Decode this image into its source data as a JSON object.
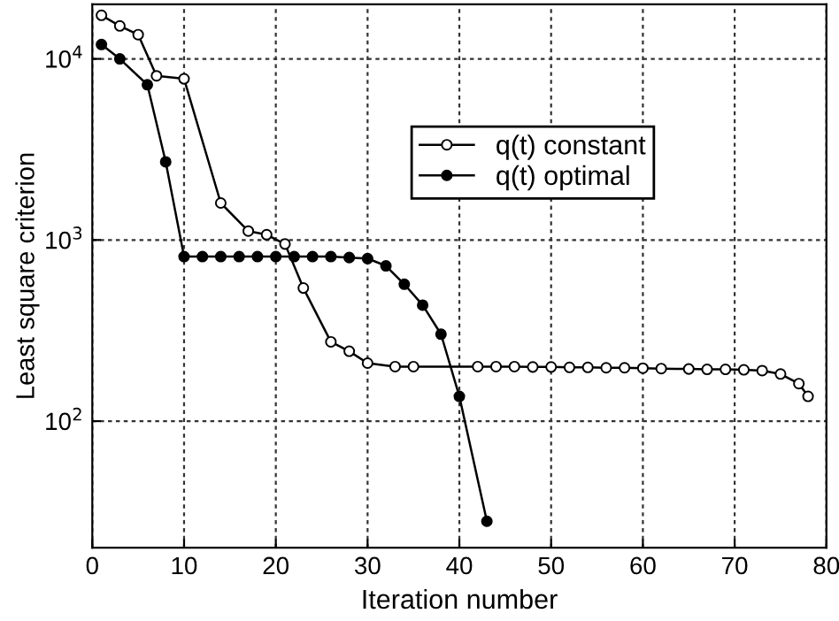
{
  "chart_data": {
    "type": "line",
    "xlabel": "Iteration number",
    "ylabel": "Least square criterion",
    "log": "y",
    "xlim": [
      0,
      80
    ],
    "xticks": [
      0,
      10,
      20,
      30,
      40,
      50,
      60,
      70,
      80
    ],
    "ylim": [
      20,
      20000
    ],
    "yticks": [
      {
        "value": 100,
        "label": "10$^{2}$"
      },
      {
        "value": 1000,
        "label": "10$^{3}$"
      },
      {
        "value": 10000,
        "label": "10$^{4}$"
      }
    ],
    "grid": true,
    "legend": "upper center",
    "marker": "circle",
    "line_style": "solid",
    "series": [
      {
        "name": "q(t) constant",
        "color": "#000000",
        "x": [
          1,
          3,
          5,
          7,
          10,
          14,
          17,
          19,
          21,
          23,
          26,
          28,
          30,
          33,
          35,
          42,
          44,
          46,
          48,
          50,
          52,
          54,
          56,
          58,
          60,
          62,
          65,
          67,
          69,
          71,
          73,
          75,
          77,
          78
        ],
        "values": [
          17400,
          15200,
          13600,
          8060,
          7760,
          1600,
          1120,
          1070,
          950,
          543,
          274,
          243,
          209,
          200,
          200,
          200,
          200,
          200,
          199,
          199,
          198,
          198,
          197,
          197,
          196,
          195,
          194,
          193,
          193,
          192,
          190,
          182,
          161,
          137
        ]
      },
      {
        "name": "q(t) optimal",
        "color": "#000000",
        "x": [
          1,
          3,
          6,
          8,
          10,
          12,
          14,
          16,
          18,
          20,
          22,
          24,
          26,
          28,
          30,
          32,
          34,
          36,
          38,
          40,
          43
        ],
        "values": [
          12000,
          10000,
          7200,
          2700,
          810,
          810,
          810,
          810,
          810,
          810,
          810,
          810,
          810,
          800,
          790,
          720,
          570,
          437,
          302,
          137,
          28
        ]
      }
    ]
  }
}
